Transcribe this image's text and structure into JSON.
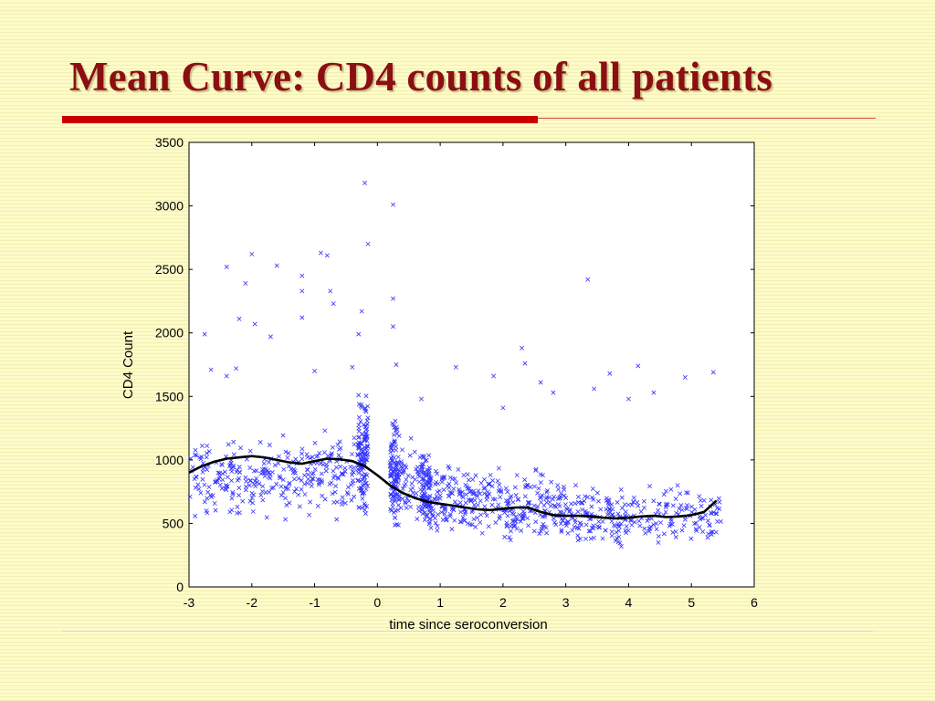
{
  "slide": {
    "title": "Mean Curve: CD4 counts of all patients"
  },
  "colors": {
    "title": "#8b0f12",
    "accent_rule": "#cc0000",
    "background": "#fdfbc8",
    "points": "#3333ff",
    "mean_curve": "#000000"
  },
  "chart_data": {
    "type": "scatter",
    "title": "",
    "xlabel": "time since seroconversion",
    "ylabel": "CD4 Count",
    "xlim": [
      -3,
      6
    ],
    "ylim": [
      0,
      3500
    ],
    "xticks": [
      -3,
      -2,
      -1,
      0,
      1,
      2,
      3,
      4,
      5,
      6
    ],
    "yticks": [
      0,
      500,
      1000,
      1500,
      2000,
      2500,
      3000,
      3500
    ],
    "grid": false,
    "legend": "none",
    "marker": "x",
    "series": [
      {
        "kind": "points",
        "points": [
          [
            -0.2,
            3180
          ],
          [
            0.25,
            3010
          ],
          [
            -0.15,
            2700
          ],
          [
            -0.9,
            2630
          ],
          [
            -0.8,
            2610
          ],
          [
            -2.0,
            2620
          ],
          [
            -2.4,
            2520
          ],
          [
            -1.6,
            2530
          ],
          [
            -1.2,
            2450
          ],
          [
            -2.1,
            2390
          ],
          [
            -1.2,
            2330
          ],
          [
            -0.75,
            2330
          ],
          [
            0.25,
            2270
          ],
          [
            -0.7,
            2230
          ],
          [
            3.35,
            2420
          ],
          [
            -2.2,
            2110
          ],
          [
            -1.95,
            2070
          ],
          [
            -1.2,
            2120
          ],
          [
            -0.25,
            2170
          ],
          [
            0.25,
            2050
          ],
          [
            -2.75,
            1990
          ],
          [
            -1.7,
            1970
          ],
          [
            -0.3,
            1990
          ],
          [
            2.3,
            1880
          ],
          [
            2.35,
            1760
          ],
          [
            -2.65,
            1710
          ],
          [
            -2.4,
            1660
          ],
          [
            -2.25,
            1720
          ],
          [
            -1.0,
            1700
          ],
          [
            -0.4,
            1730
          ],
          [
            0.3,
            1750
          ],
          [
            1.25,
            1730
          ],
          [
            1.85,
            1660
          ],
          [
            2.6,
            1610
          ],
          [
            3.7,
            1680
          ],
          [
            4.15,
            1740
          ],
          [
            4.9,
            1650
          ],
          [
            5.35,
            1690
          ],
          [
            4.4,
            1530
          ],
          [
            3.45,
            1560
          ],
          [
            2.8,
            1530
          ],
          [
            4.0,
            1480
          ],
          [
            2.0,
            1410
          ],
          [
            0.7,
            1480
          ],
          [
            -0.3,
            1510
          ]
        ]
      },
      {
        "kind": "band",
        "bands": [
          {
            "x": [
              -3.0,
              -2.0
            ],
            "center": 850,
            "spread": 300,
            "count": 110
          },
          {
            "x": [
              -2.0,
              -1.0
            ],
            "center": 870,
            "spread": 310,
            "count": 110
          },
          {
            "x": [
              -1.0,
              -0.35
            ],
            "center": 900,
            "spread": 330,
            "count": 80
          },
          {
            "x": [
              -0.32,
              -0.15
            ],
            "center": 1050,
            "spread": 450,
            "count": 130
          },
          {
            "x": [
              0.2,
              0.35
            ],
            "center": 880,
            "spread": 420,
            "count": 110
          },
          {
            "x": [
              0.35,
              0.75
            ],
            "center": 800,
            "spread": 330,
            "count": 60
          },
          {
            "x": [
              0.7,
              0.85
            ],
            "center": 720,
            "spread": 320,
            "count": 90
          },
          {
            "x": [
              0.85,
              2.0
            ],
            "center": 680,
            "spread": 290,
            "count": 170
          },
          {
            "x": [
              2.0,
              3.0
            ],
            "center": 620,
            "spread": 270,
            "count": 150
          },
          {
            "x": [
              3.0,
              4.0
            ],
            "center": 560,
            "spread": 260,
            "count": 130
          },
          {
            "x": [
              4.0,
              5.5
            ],
            "center": 560,
            "spread": 250,
            "count": 120
          }
        ]
      },
      {
        "kind": "line",
        "name": "",
        "x": [
          -3.0,
          -2.8,
          -2.6,
          -2.4,
          -2.2,
          -2.0,
          -1.8,
          -1.6,
          -1.4,
          -1.2,
          -1.0,
          -0.8,
          -0.6,
          -0.4,
          -0.2,
          0.0,
          0.2,
          0.4,
          0.6,
          0.8,
          1.0,
          1.2,
          1.4,
          1.6,
          1.8,
          2.0,
          2.2,
          2.4,
          2.6,
          2.8,
          3.0,
          3.2,
          3.4,
          3.6,
          3.8,
          4.0,
          4.2,
          4.4,
          4.6,
          4.8,
          5.0,
          5.2,
          5.4
        ],
        "y": [
          900,
          950,
          985,
          1010,
          1020,
          1030,
          1020,
          1000,
          980,
          970,
          990,
          1010,
          1005,
          990,
          950,
          880,
          800,
          740,
          700,
          670,
          655,
          640,
          625,
          610,
          605,
          615,
          625,
          625,
          590,
          565,
          560,
          560,
          555,
          545,
          540,
          545,
          555,
          560,
          550,
          555,
          565,
          590,
          680
        ]
      }
    ]
  }
}
